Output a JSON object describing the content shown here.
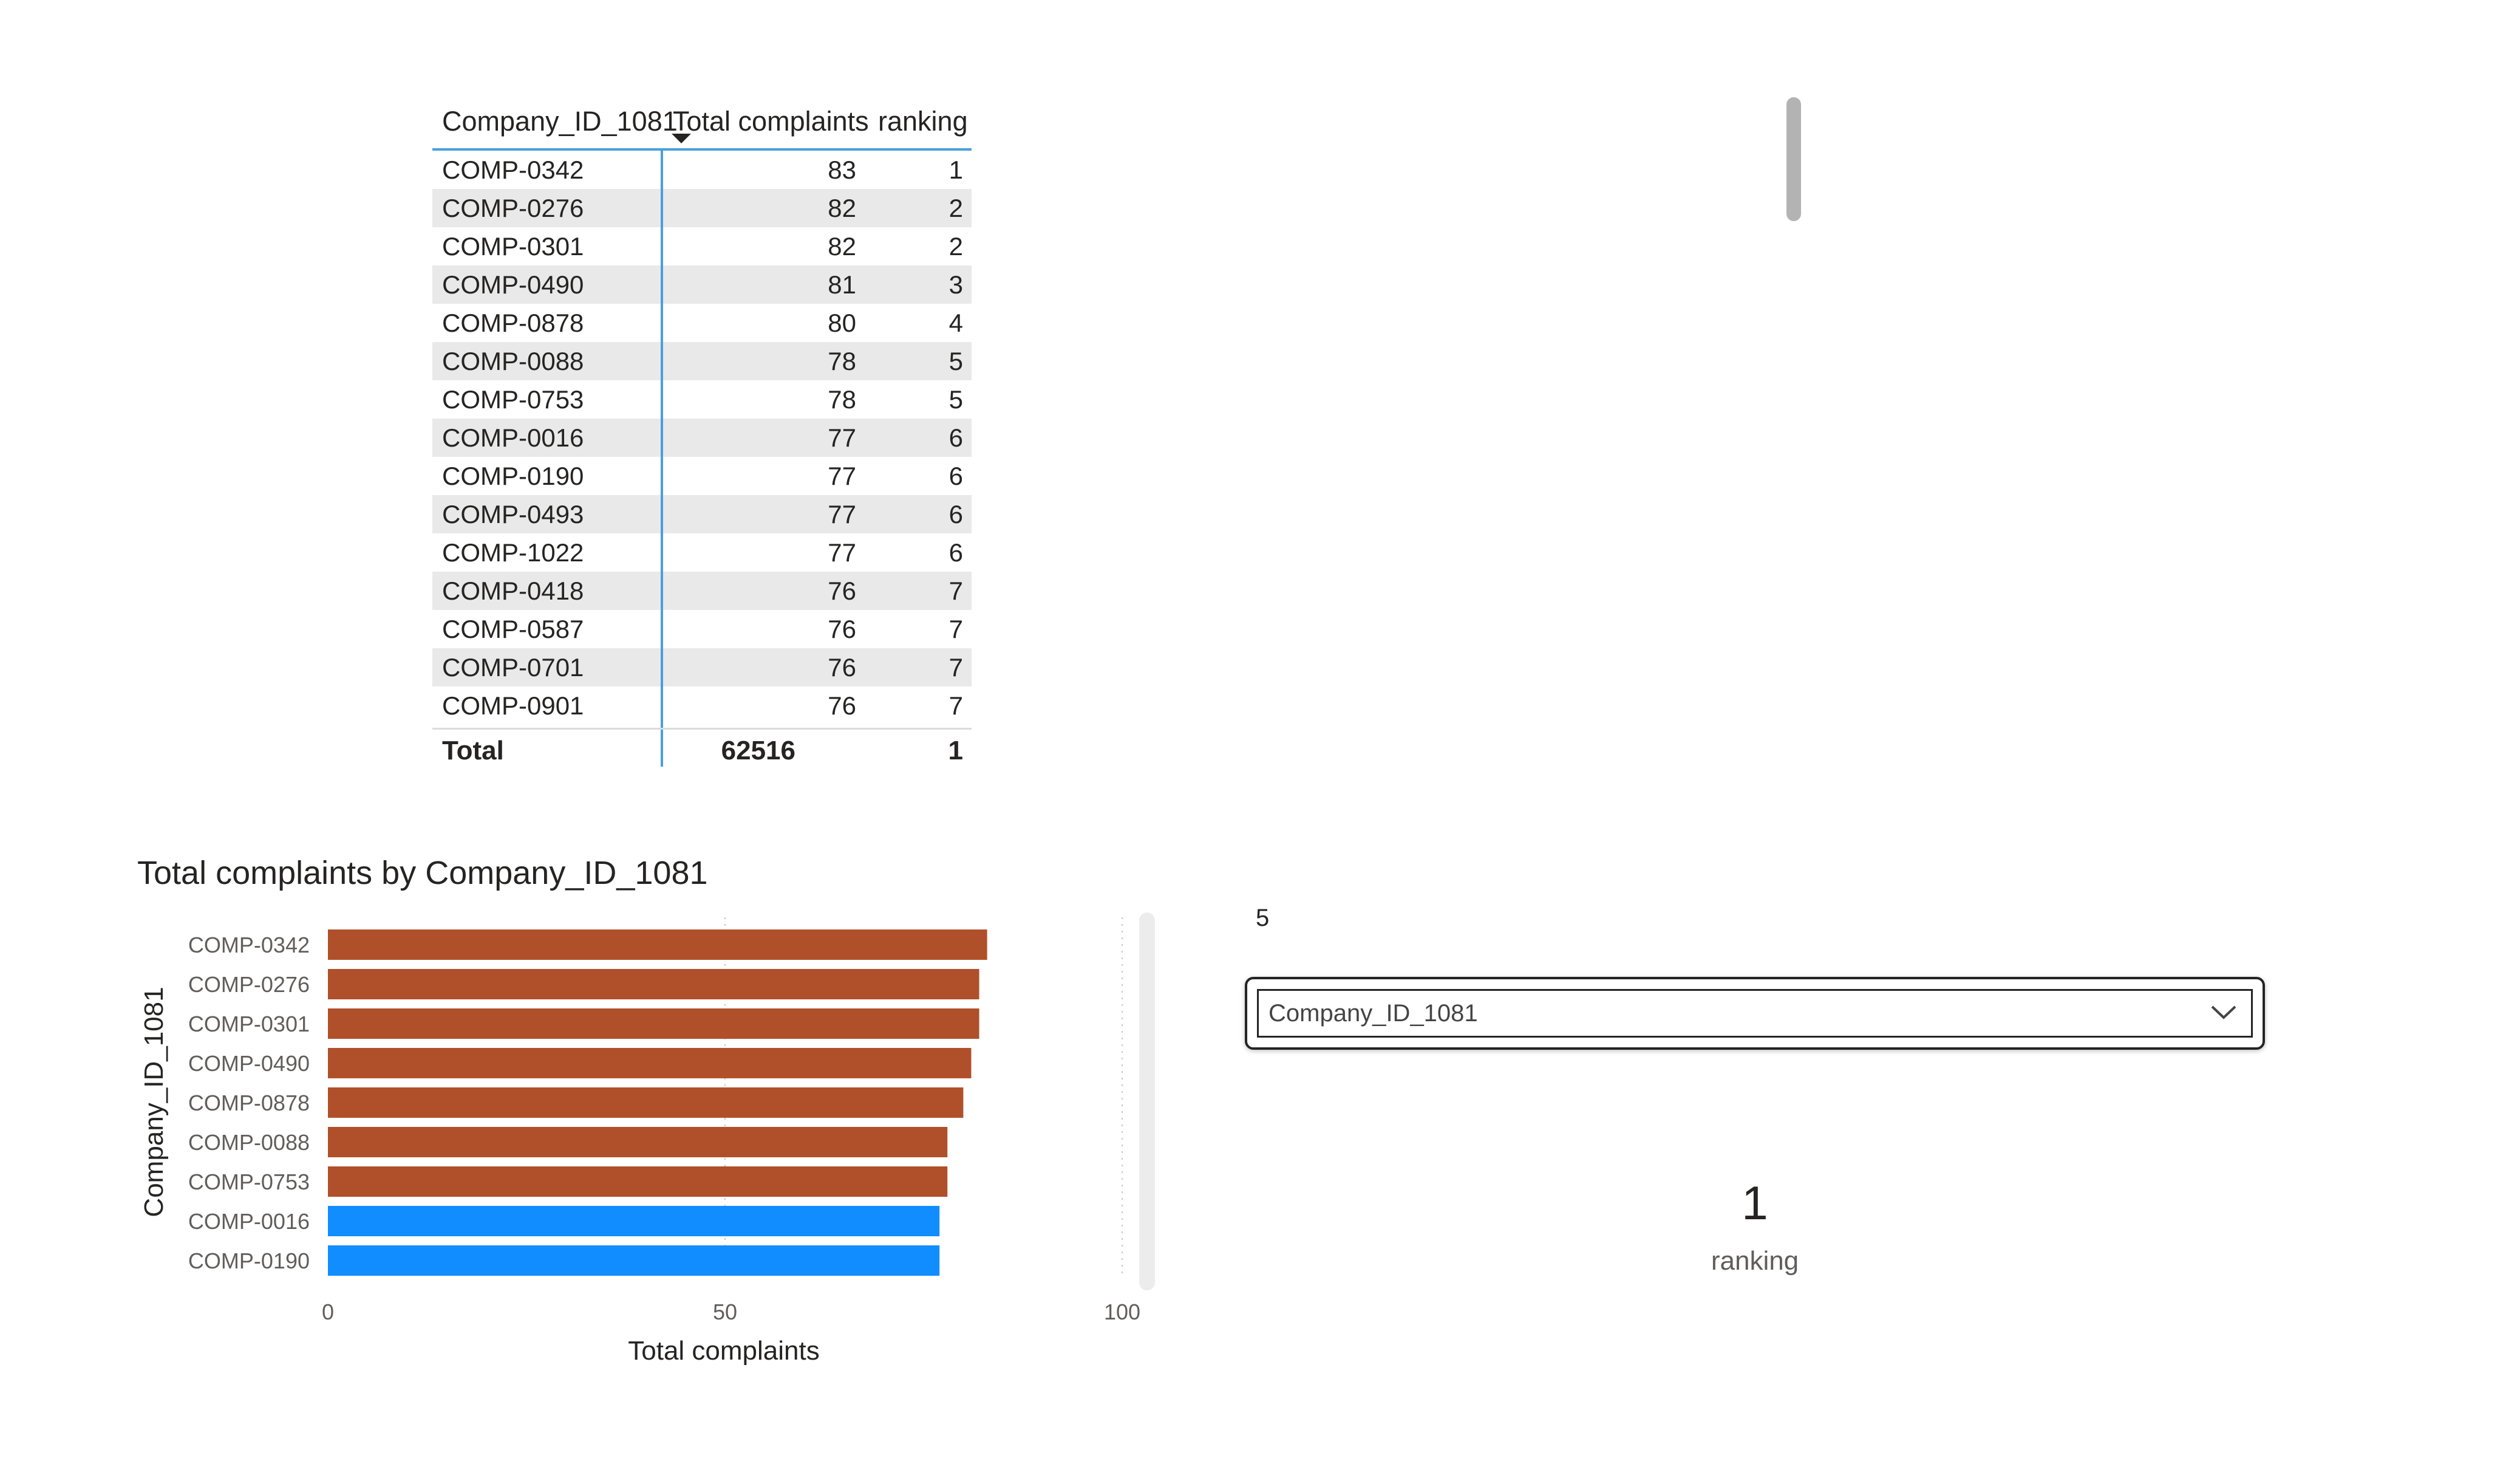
{
  "table": {
    "headers": [
      "Company_ID_1081",
      "Total complaints",
      "ranking"
    ],
    "sort_column": "Total complaints",
    "sort_direction": "descending",
    "rows": [
      [
        "COMP-0342",
        "83",
        "1"
      ],
      [
        "COMP-0276",
        "82",
        "2"
      ],
      [
        "COMP-0301",
        "82",
        "2"
      ],
      [
        "COMP-0490",
        "81",
        "3"
      ],
      [
        "COMP-0878",
        "80",
        "4"
      ],
      [
        "COMP-0088",
        "78",
        "5"
      ],
      [
        "COMP-0753",
        "78",
        "5"
      ],
      [
        "COMP-0016",
        "77",
        "6"
      ],
      [
        "COMP-0190",
        "77",
        "6"
      ],
      [
        "COMP-0493",
        "77",
        "6"
      ],
      [
        "COMP-1022",
        "77",
        "6"
      ],
      [
        "COMP-0418",
        "76",
        "7"
      ],
      [
        "COMP-0587",
        "76",
        "7"
      ],
      [
        "COMP-0701",
        "76",
        "7"
      ],
      [
        "COMP-0901",
        "76",
        "7"
      ]
    ],
    "total": [
      "Total",
      "62516",
      "1"
    ]
  },
  "chart_data": {
    "type": "bar",
    "orientation": "horizontal",
    "title": "Total complaints by Company_ID_1081",
    "xlabel": "Total complaints",
    "ylabel": "Company_ID_1081",
    "categories": [
      "COMP-0342",
      "COMP-0276",
      "COMP-0301",
      "COMP-0490",
      "COMP-0878",
      "COMP-0088",
      "COMP-0753",
      "COMP-0016",
      "COMP-0190"
    ],
    "values": [
      83,
      82,
      82,
      81,
      80,
      78,
      78,
      77,
      77
    ],
    "bar_colors": [
      "#b0502a",
      "#b0502a",
      "#b0502a",
      "#b0502a",
      "#b0502a",
      "#b0502a",
      "#b0502a",
      "#118dff",
      "#118dff"
    ],
    "xlim": [
      0,
      100
    ],
    "xticks": [
      0,
      50,
      100
    ],
    "grid": "vertical dotted"
  },
  "slicer": {
    "selected_value": "5",
    "field_label": "Company_ID_1081",
    "icon": "chevron-down-icon"
  },
  "card": {
    "value": "1",
    "label": "ranking"
  }
}
